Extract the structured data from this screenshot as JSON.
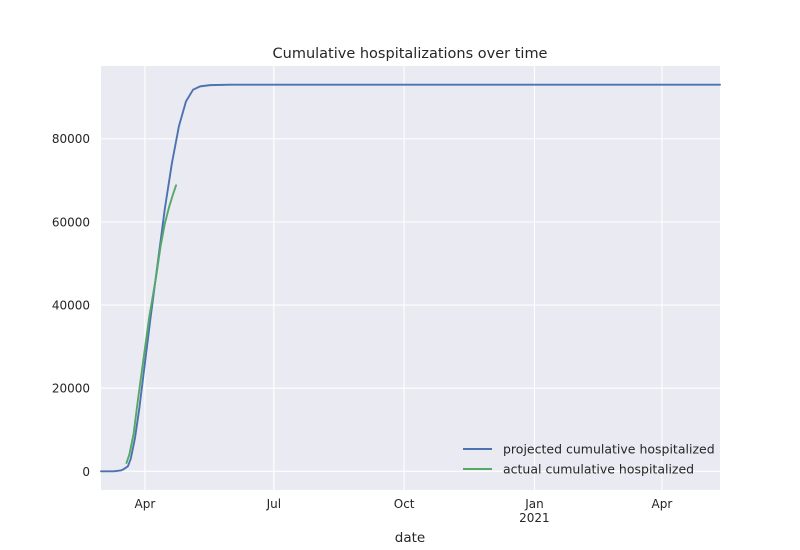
{
  "chart_data": {
    "type": "line",
    "title": "Cumulative hospitalizations over time",
    "xlabel": "date",
    "ylabel": "",
    "x_type": "date",
    "xlim": [
      "2020-03-01",
      "2021-05-12"
    ],
    "ylim": [
      -4500,
      97500
    ],
    "grid": true,
    "legend_position": "lower-right",
    "x_ticks": [
      {
        "date": "2020-04-01",
        "label": "Apr",
        "sublabel": ""
      },
      {
        "date": "2020-07-01",
        "label": "Jul",
        "sublabel": ""
      },
      {
        "date": "2020-10-01",
        "label": "Oct",
        "sublabel": ""
      },
      {
        "date": "2021-01-01",
        "label": "Jan",
        "sublabel": "2021"
      },
      {
        "date": "2021-04-01",
        "label": "Apr",
        "sublabel": ""
      }
    ],
    "y_ticks": [
      {
        "value": 0,
        "label": "0"
      },
      {
        "value": 20000,
        "label": "20000"
      },
      {
        "value": 40000,
        "label": "40000"
      },
      {
        "value": 60000,
        "label": "60000"
      },
      {
        "value": 80000,
        "label": "80000"
      }
    ],
    "series": [
      {
        "name": "projected cumulative hospitalized",
        "color": "#4c72b0",
        "points": [
          {
            "x": "2020-03-01",
            "y": 0
          },
          {
            "x": "2020-03-10",
            "y": 0
          },
          {
            "x": "2020-03-15",
            "y": 200
          },
          {
            "x": "2020-03-17",
            "y": 500
          },
          {
            "x": "2020-03-20",
            "y": 1200
          },
          {
            "x": "2020-03-22",
            "y": 3000
          },
          {
            "x": "2020-03-25",
            "y": 8000
          },
          {
            "x": "2020-03-28",
            "y": 15000
          },
          {
            "x": "2020-04-01",
            "y": 26000
          },
          {
            "x": "2020-04-05",
            "y": 37000
          },
          {
            "x": "2020-04-10",
            "y": 50000
          },
          {
            "x": "2020-04-15",
            "y": 63000
          },
          {
            "x": "2020-04-20",
            "y": 74000
          },
          {
            "x": "2020-04-25",
            "y": 83000
          },
          {
            "x": "2020-04-30",
            "y": 89000
          },
          {
            "x": "2020-05-05",
            "y": 91800
          },
          {
            "x": "2020-05-10",
            "y": 92600
          },
          {
            "x": "2020-05-17",
            "y": 92900
          },
          {
            "x": "2020-06-01",
            "y": 93000
          },
          {
            "x": "2021-05-12",
            "y": 93000
          }
        ]
      },
      {
        "name": "actual cumulative hospitalized",
        "color": "#55a868",
        "points": [
          {
            "x": "2020-03-19",
            "y": 2000
          },
          {
            "x": "2020-03-21",
            "y": 4000
          },
          {
            "x": "2020-03-24",
            "y": 9000
          },
          {
            "x": "2020-03-27",
            "y": 17000
          },
          {
            "x": "2020-03-31",
            "y": 27000
          },
          {
            "x": "2020-04-04",
            "y": 37000
          },
          {
            "x": "2020-04-07",
            "y": 43000
          },
          {
            "x": "2020-04-09",
            "y": 47000
          },
          {
            "x": "2020-04-12",
            "y": 54000
          },
          {
            "x": "2020-04-15",
            "y": 59500
          },
          {
            "x": "2020-04-18",
            "y": 63500
          },
          {
            "x": "2020-04-21",
            "y": 66800
          },
          {
            "x": "2020-04-23",
            "y": 68800
          }
        ]
      }
    ]
  }
}
